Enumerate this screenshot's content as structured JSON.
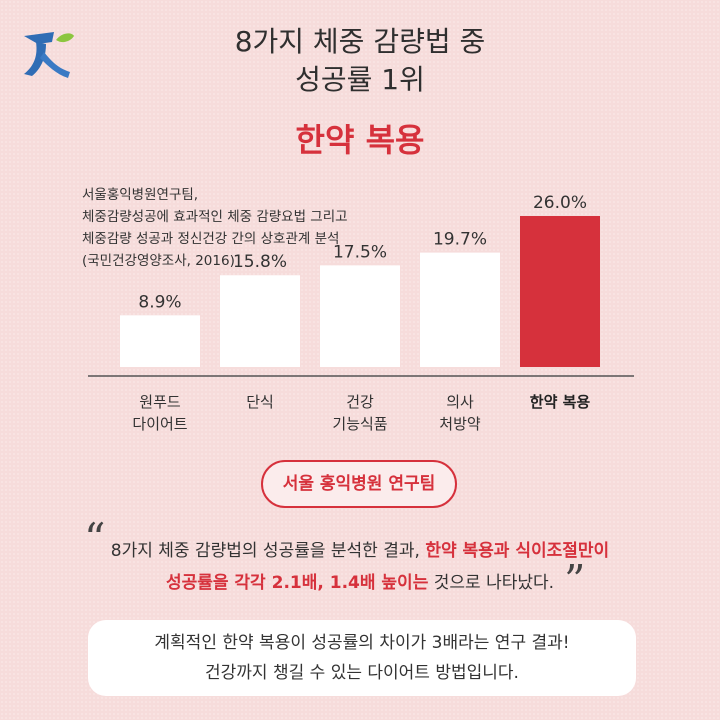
{
  "header": {
    "title_line1": "8가지 체중 감량법 중",
    "title_line2": "성공률 1위",
    "headline": "한약 복용"
  },
  "source": {
    "line1": "서울홍익병원연구팀,",
    "line2": "체중감량성공에 효과적인 체중 감량요법 그리고",
    "line3": "체중감량 성공과 정신건강 간의 상호관계 분석",
    "line4": "(국민건강영양조사, 2016)"
  },
  "chart_data": {
    "type": "bar",
    "categories": [
      [
        "원푸드",
        "다이어트"
      ],
      [
        "단식"
      ],
      [
        "건강",
        "기능식품"
      ],
      [
        "의사",
        "처방약"
      ],
      [
        "한약 복용"
      ]
    ],
    "values": [
      8.9,
      15.8,
      17.5,
      19.7,
      26.0
    ],
    "value_labels": [
      "8.9%",
      "15.8%",
      "17.5%",
      "19.7%",
      "26.0%"
    ],
    "highlight_index": 4,
    "unit": "%",
    "ylim": [
      0,
      26.0
    ],
    "colors": {
      "default": "#ffffff",
      "highlight": "#d6313c",
      "baseline": "#555555"
    }
  },
  "badge": {
    "label": "서울 홍익병원 연구팀"
  },
  "quote": {
    "line1_a": "8가지 체중 감량법의 성공률을 분석한 결과, ",
    "line1_b": "한약 복용과 식이조절만이",
    "line2_a": "성공률을 각각 2.1배, 1.4배 높이는",
    "line2_b": " 것으로 나타났다."
  },
  "summary": {
    "line1": "계획적인 한약 복용이 성공률의 차이가 3배라는 연구 결과!",
    "line2": "건강까지 챙길 수 있는 다이어트 방법입니다."
  },
  "icons": {
    "logo": "brand-logo-icon",
    "quote_open": "quote-open-icon",
    "quote_close": "quote-close-icon"
  }
}
